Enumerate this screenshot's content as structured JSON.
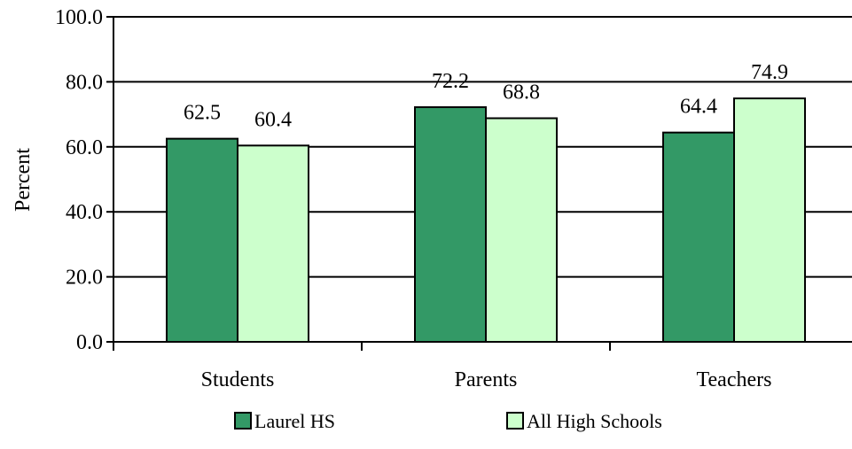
{
  "chart_data": {
    "type": "bar",
    "title": "",
    "xlabel": "",
    "ylabel": "Percent",
    "ylim": [
      0,
      100
    ],
    "yticks": [
      "0.0",
      "20.0",
      "40.0",
      "60.0",
      "80.0",
      "100.0"
    ],
    "grid": true,
    "legend_position": "bottom",
    "categories": [
      "Students",
      "Parents",
      "Teachers"
    ],
    "series": [
      {
        "name": "Laurel HS",
        "values": [
          62.5,
          72.2,
          64.4
        ],
        "labels": [
          "62.5",
          "72.2",
          "64.4"
        ],
        "color": "#339966"
      },
      {
        "name": "All High Schools",
        "values": [
          60.4,
          68.8,
          74.9
        ],
        "labels": [
          "60.4",
          "68.8",
          "74.9"
        ],
        "color": "#CCFFCC"
      }
    ]
  }
}
